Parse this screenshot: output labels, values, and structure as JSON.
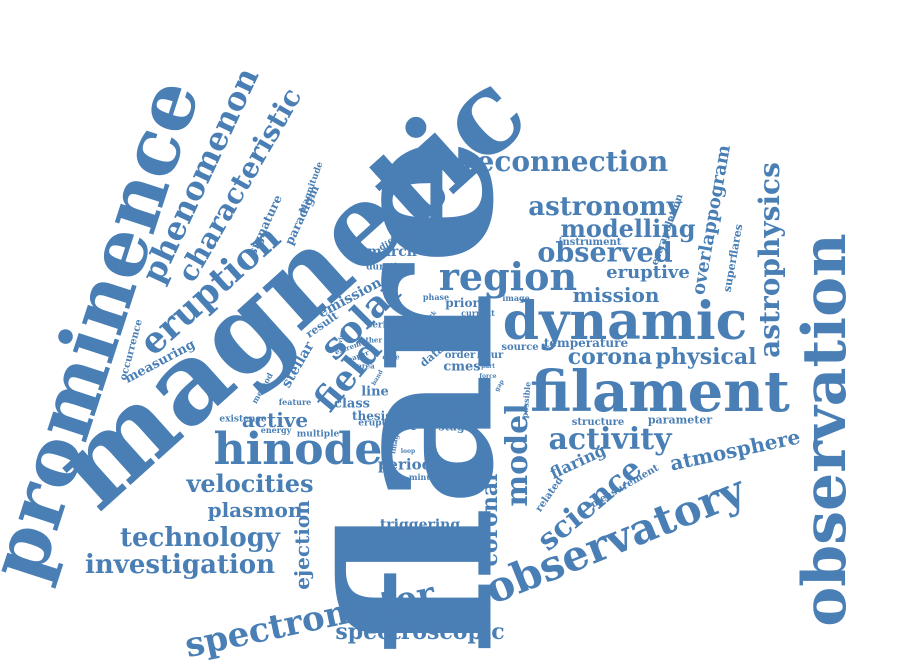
{
  "color": "#4a7fb5",
  "words": [
    {
      "text": "flare"
    },
    {
      "text": "magnetic"
    },
    {
      "text": "prominence"
    },
    {
      "text": "observation"
    },
    {
      "text": "filament"
    },
    {
      "text": "dynamic"
    },
    {
      "text": "observatory"
    },
    {
      "text": "hinode"
    },
    {
      "text": "spectrometer"
    },
    {
      "text": "region"
    },
    {
      "text": "eruption"
    },
    {
      "text": "phenomenon"
    },
    {
      "text": "characteristic"
    },
    {
      "text": "reconnection"
    },
    {
      "text": "astronomy"
    },
    {
      "text": "modelling"
    },
    {
      "text": "observed"
    },
    {
      "text": "astrophysics"
    },
    {
      "text": "solar"
    },
    {
      "text": "field"
    },
    {
      "text": "activity"
    },
    {
      "text": "science"
    },
    {
      "text": "model"
    },
    {
      "text": "coronal"
    },
    {
      "text": "velocities"
    },
    {
      "text": "plasmon"
    },
    {
      "text": "technology"
    },
    {
      "text": "investigation"
    },
    {
      "text": "spectroscopic"
    },
    {
      "text": "atmosphere"
    },
    {
      "text": "overlappogram"
    },
    {
      "text": "corona"
    },
    {
      "text": "physical"
    },
    {
      "text": "mission"
    },
    {
      "text": "eruptive"
    },
    {
      "text": "ejection"
    },
    {
      "text": "active"
    },
    {
      "text": "flaring"
    },
    {
      "text": "triggering"
    },
    {
      "text": "period"
    },
    {
      "text": "stellar"
    },
    {
      "text": "signature"
    },
    {
      "text": "paradigm"
    },
    {
      "text": "measuring"
    },
    {
      "text": "march"
    },
    {
      "text": "emission"
    },
    {
      "text": "superflares"
    },
    {
      "text": "extrapolation"
    },
    {
      "text": "prior"
    },
    {
      "text": "mas"
    },
    {
      "text": "rope"
    },
    {
      "text": "cmes"
    },
    {
      "text": "data"
    },
    {
      "text": "line"
    },
    {
      "text": "class"
    },
    {
      "text": "thesis"
    },
    {
      "text": "study"
    },
    {
      "text": "stage"
    },
    {
      "text": "temperature"
    },
    {
      "text": "parameter"
    },
    {
      "text": "measurement"
    },
    {
      "text": "related"
    },
    {
      "text": "structure"
    },
    {
      "text": "instrument"
    },
    {
      "text": "occurrence"
    },
    {
      "text": "magnitude"
    },
    {
      "text": "different"
    },
    {
      "text": "duration"
    },
    {
      "text": "result"
    },
    {
      "text": "series"
    },
    {
      "text": "iris"
    },
    {
      "text": "order"
    },
    {
      "text": "hour"
    },
    {
      "text": "source"
    },
    {
      "text": "current"
    },
    {
      "text": "image"
    },
    {
      "text": "phase"
    },
    {
      "text": "erupt"
    },
    {
      "text": "multiple"
    },
    {
      "text": "energy"
    },
    {
      "text": "existence"
    },
    {
      "text": "feature"
    },
    {
      "text": "method"
    },
    {
      "text": "minute"
    },
    {
      "text": "present"
    },
    {
      "text": "possible"
    },
    {
      "text": "images"
    },
    {
      "text": "case"
    },
    {
      "text": "area"
    },
    {
      "text": "narrow"
    },
    {
      "text": "tether"
    },
    {
      "text": "extreme"
    },
    {
      "text": "paper"
    },
    {
      "text": "part"
    },
    {
      "text": "force"
    },
    {
      "text": "light"
    },
    {
      "text": "work"
    },
    {
      "text": "view"
    },
    {
      "text": "time"
    },
    {
      "text": "loop"
    },
    {
      "text": "gap"
    },
    {
      "text": "band"
    }
  ]
}
